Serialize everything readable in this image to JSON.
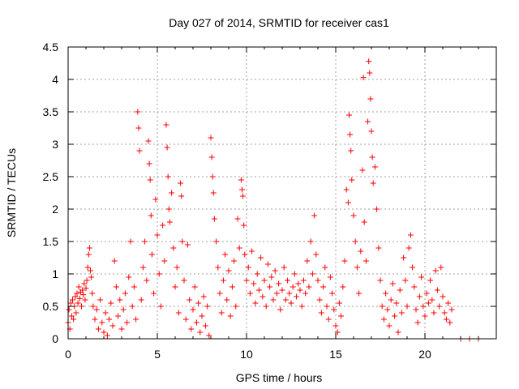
{
  "chart_data": {
    "type": "scatter",
    "title": "Day 027 of 2014, SRMTID for receiver cas1",
    "xlabel": "GPS time / hours",
    "ylabel": "SRMTID / TECUs",
    "xlim": [
      0,
      24
    ],
    "ylim": [
      0,
      4.5
    ],
    "xticks": [
      "0",
      "5",
      "10",
      "15",
      "20"
    ],
    "yticks": [
      "0",
      "0.5",
      "1",
      "1.5",
      "2",
      "2.5",
      "3",
      "3.5",
      "4",
      "4.5"
    ],
    "grid": true,
    "marker": "plus",
    "series_color": "#ff0000",
    "series": [
      {
        "name": "SRMTID",
        "points": [
          [
            0.0,
            0.25
          ],
          [
            0.05,
            0.45
          ],
          [
            0.1,
            0.15
          ],
          [
            0.15,
            0.55
          ],
          [
            0.2,
            0.35
          ],
          [
            0.25,
            0.6
          ],
          [
            0.3,
            0.3
          ],
          [
            0.35,
            0.5
          ],
          [
            0.4,
            0.65
          ],
          [
            0.45,
            0.4
          ],
          [
            0.5,
            0.7
          ],
          [
            0.55,
            0.55
          ],
          [
            0.6,
            0.8
          ],
          [
            0.65,
            0.62
          ],
          [
            0.7,
            0.72
          ],
          [
            0.75,
            0.5
          ],
          [
            0.8,
            0.75
          ],
          [
            0.85,
            0.68
          ],
          [
            0.9,
            0.85
          ],
          [
            0.95,
            0.6
          ],
          [
            1.0,
            0.78
          ],
          [
            1.05,
            0.9
          ],
          [
            1.1,
            1.1
          ],
          [
            1.15,
            1.3
          ],
          [
            1.2,
            1.4
          ],
          [
            1.25,
            1.05
          ],
          [
            1.3,
            0.95
          ],
          [
            1.35,
            0.7
          ],
          [
            1.4,
            0.5
          ],
          [
            1.5,
            0.3
          ],
          [
            1.6,
            0.45
          ],
          [
            1.7,
            0.15
          ],
          [
            1.8,
            0.6
          ],
          [
            1.9,
            0.25
          ],
          [
            2.0,
            0.1
          ],
          [
            2.1,
            0.4
          ],
          [
            2.2,
            0.05
          ],
          [
            2.3,
            0.3
          ],
          [
            2.4,
            0.55
          ],
          [
            2.5,
            0.2
          ],
          [
            2.6,
            1.2
          ],
          [
            2.7,
            0.8
          ],
          [
            2.8,
            0.35
          ],
          [
            2.9,
            0.6
          ],
          [
            3.0,
            0.15
          ],
          [
            3.1,
            0.45
          ],
          [
            3.2,
            0.7
          ],
          [
            3.3,
            0.25
          ],
          [
            3.4,
            0.95
          ],
          [
            3.5,
            1.5
          ],
          [
            3.6,
            0.5
          ],
          [
            3.7,
            0.8
          ],
          [
            3.8,
            0.3
          ],
          [
            3.9,
            3.5
          ],
          [
            3.95,
            3.25
          ],
          [
            4.0,
            2.9
          ],
          [
            4.1,
            0.6
          ],
          [
            4.2,
            1.1
          ],
          [
            4.3,
            1.5
          ],
          [
            4.4,
            0.9
          ],
          [
            4.5,
            3.05
          ],
          [
            4.55,
            2.7
          ],
          [
            4.6,
            2.45
          ],
          [
            4.65,
            1.9
          ],
          [
            4.7,
            1.3
          ],
          [
            4.8,
            0.7
          ],
          [
            4.9,
            2.15
          ],
          [
            5.0,
            1.6
          ],
          [
            5.1,
            1.0
          ],
          [
            5.2,
            0.5
          ],
          [
            5.3,
            1.75
          ],
          [
            5.4,
            1.2
          ],
          [
            5.5,
            3.3
          ],
          [
            5.55,
            2.95
          ],
          [
            5.6,
            2.5
          ],
          [
            5.65,
            2.0
          ],
          [
            5.7,
            1.8
          ],
          [
            5.8,
            2.25
          ],
          [
            5.9,
            1.4
          ],
          [
            6.0,
            0.8
          ],
          [
            6.1,
            1.1
          ],
          [
            6.2,
            0.4
          ],
          [
            6.3,
            2.4
          ],
          [
            6.35,
            2.2
          ],
          [
            6.4,
            1.5
          ],
          [
            6.5,
            0.9
          ],
          [
            6.6,
            0.3
          ],
          [
            6.7,
            1.45
          ],
          [
            6.8,
            0.6
          ],
          [
            6.9,
            0.15
          ],
          [
            7.0,
            0.45
          ],
          [
            7.1,
            0.8
          ],
          [
            7.2,
            0.25
          ],
          [
            7.3,
            0.55
          ],
          [
            7.4,
            0.1
          ],
          [
            7.5,
            0.35
          ],
          [
            7.6,
            0.65
          ],
          [
            7.7,
            0.2
          ],
          [
            7.8,
            0.5
          ],
          [
            7.9,
            0.05
          ],
          [
            8.0,
            3.1
          ],
          [
            8.05,
            2.8
          ],
          [
            8.1,
            2.5
          ],
          [
            8.15,
            2.25
          ],
          [
            8.2,
            1.85
          ],
          [
            8.3,
            1.5
          ],
          [
            8.4,
            1.1
          ],
          [
            8.5,
            0.7
          ],
          [
            8.6,
            0.4
          ],
          [
            8.7,
            0.9
          ],
          [
            8.8,
            1.3
          ],
          [
            8.9,
            0.6
          ],
          [
            9.0,
            1.05
          ],
          [
            9.1,
            0.35
          ],
          [
            9.2,
            0.8
          ],
          [
            9.3,
            1.2
          ],
          [
            9.4,
            0.5
          ],
          [
            9.5,
            1.85
          ],
          [
            9.6,
            1.4
          ],
          [
            9.7,
            2.45
          ],
          [
            9.75,
            2.3
          ],
          [
            9.8,
            2.2
          ],
          [
            9.85,
            1.75
          ],
          [
            9.9,
            1.3
          ],
          [
            10.0,
            0.9
          ],
          [
            10.1,
            1.1
          ],
          [
            10.2,
            0.7
          ],
          [
            10.3,
            1.35
          ],
          [
            10.4,
            0.85
          ],
          [
            10.5,
            0.55
          ],
          [
            10.6,
            1.0
          ],
          [
            10.7,
            0.75
          ],
          [
            10.8,
            1.25
          ],
          [
            10.9,
            0.65
          ],
          [
            11.0,
            0.9
          ],
          [
            11.1,
            0.5
          ],
          [
            11.2,
            1.15
          ],
          [
            11.3,
            0.8
          ],
          [
            11.4,
            0.95
          ],
          [
            11.5,
            0.6
          ],
          [
            11.6,
            1.05
          ],
          [
            11.7,
            0.7
          ],
          [
            11.8,
            0.85
          ],
          [
            11.9,
            0.45
          ],
          [
            12.0,
            0.75
          ],
          [
            12.1,
            1.1
          ],
          [
            12.2,
            0.6
          ],
          [
            12.3,
            0.9
          ],
          [
            12.4,
            0.7
          ],
          [
            12.5,
            0.55
          ],
          [
            12.6,
            0.8
          ],
          [
            12.7,
            1.0
          ],
          [
            12.8,
            0.65
          ],
          [
            12.9,
            0.85
          ],
          [
            13.0,
            0.75
          ],
          [
            13.1,
            0.5
          ],
          [
            13.2,
            0.9
          ],
          [
            13.3,
            0.7
          ],
          [
            13.4,
            1.2
          ],
          [
            13.5,
            0.8
          ],
          [
            13.6,
            1.5
          ],
          [
            13.7,
            1.0
          ],
          [
            13.8,
            1.9
          ],
          [
            13.9,
            1.3
          ],
          [
            14.0,
            0.9
          ],
          [
            14.1,
            0.6
          ],
          [
            14.2,
            0.4
          ],
          [
            14.3,
            0.8
          ],
          [
            14.4,
            1.1
          ],
          [
            14.5,
            0.5
          ],
          [
            14.6,
            0.3
          ],
          [
            14.7,
            0.95
          ],
          [
            14.8,
            0.7
          ],
          [
            14.9,
            0.45
          ],
          [
            15.0,
            0.2
          ],
          [
            15.1,
            0.1
          ],
          [
            15.2,
            0.55
          ],
          [
            15.3,
            0.35
          ],
          [
            15.4,
            0.8
          ],
          [
            15.5,
            1.2
          ],
          [
            15.6,
            2.3
          ],
          [
            15.7,
            2.1
          ],
          [
            15.75,
            3.45
          ],
          [
            15.8,
            3.15
          ],
          [
            15.85,
            2.9
          ],
          [
            15.9,
            2.45
          ],
          [
            16.0,
            1.9
          ],
          [
            16.1,
            1.5
          ],
          [
            16.2,
            1.1
          ],
          [
            16.3,
            0.7
          ],
          [
            16.4,
            1.35
          ],
          [
            16.5,
            2.6
          ],
          [
            16.55,
            4.03
          ],
          [
            16.6,
            1.8
          ],
          [
            16.7,
            1.2
          ],
          [
            16.8,
            3.35
          ],
          [
            16.85,
            4.28
          ],
          [
            16.9,
            4.1
          ],
          [
            16.95,
            3.7
          ],
          [
            17.0,
            3.2
          ],
          [
            17.05,
            2.8
          ],
          [
            17.1,
            2.4
          ],
          [
            17.2,
            2.65
          ],
          [
            17.3,
            2.0
          ],
          [
            17.4,
            1.4
          ],
          [
            17.5,
            0.9
          ],
          [
            17.6,
            0.5
          ],
          [
            17.7,
            0.3
          ],
          [
            17.8,
            0.7
          ],
          [
            17.9,
            0.45
          ],
          [
            18.0,
            0.2
          ],
          [
            18.1,
            0.6
          ],
          [
            18.2,
            0.85
          ],
          [
            18.3,
            0.35
          ],
          [
            18.4,
            0.55
          ],
          [
            18.5,
            0.1
          ],
          [
            18.6,
            0.75
          ],
          [
            18.7,
            0.4
          ],
          [
            18.8,
            1.25
          ],
          [
            18.9,
            0.9
          ],
          [
            19.0,
            0.5
          ],
          [
            19.1,
            1.4
          ],
          [
            19.2,
            1.6
          ],
          [
            19.3,
            1.1
          ],
          [
            19.4,
            0.8
          ],
          [
            19.5,
            0.45
          ],
          [
            19.6,
            0.25
          ],
          [
            19.7,
            0.65
          ],
          [
            19.8,
            0.95
          ],
          [
            19.9,
            0.5
          ],
          [
            20.0,
            0.35
          ],
          [
            20.1,
            0.7
          ],
          [
            20.2,
            0.55
          ],
          [
            20.3,
            0.9
          ],
          [
            20.4,
            0.6
          ],
          [
            20.5,
            0.4
          ],
          [
            20.6,
            1.05
          ],
          [
            20.7,
            0.75
          ],
          [
            20.8,
            0.5
          ],
          [
            20.9,
            1.1
          ],
          [
            21.0,
            0.65
          ],
          [
            21.1,
            0.4
          ],
          [
            21.2,
            0.3
          ],
          [
            21.3,
            0.55
          ],
          [
            21.4,
            0.25
          ],
          [
            21.5,
            0.45
          ],
          [
            22.0,
            0.0
          ],
          [
            22.5,
            0.0
          ],
          [
            23.0,
            0.0
          ]
        ]
      }
    ]
  }
}
